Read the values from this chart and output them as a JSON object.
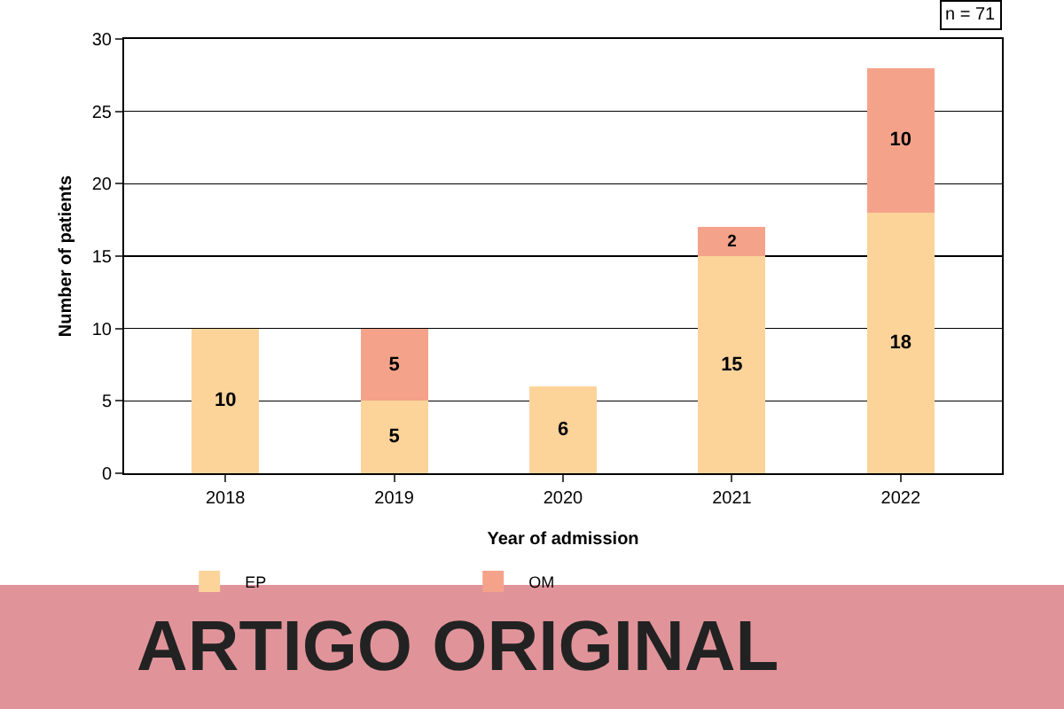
{
  "chart_data": {
    "type": "bar",
    "stacked": true,
    "xlabel": "Year of admission",
    "ylabel": "Number of patients",
    "categories": [
      "2018",
      "2019",
      "2020",
      "2021",
      "2022"
    ],
    "series": [
      {
        "name": "EP",
        "color": "#fcd49a",
        "values": [
          10,
          5,
          6,
          15,
          18
        ]
      },
      {
        "name": "OM",
        "color": "#f4a38a",
        "values": [
          null,
          5,
          null,
          2,
          10
        ]
      }
    ],
    "ylim": [
      0,
      30
    ],
    "yticks": [
      0,
      5,
      10,
      15,
      20,
      25,
      30
    ],
    "grid": "y",
    "legend": "bottom",
    "data_labels": true,
    "annotations": [
      "n = 71",
      "ARTIGO ORIGINAL"
    ]
  }
}
